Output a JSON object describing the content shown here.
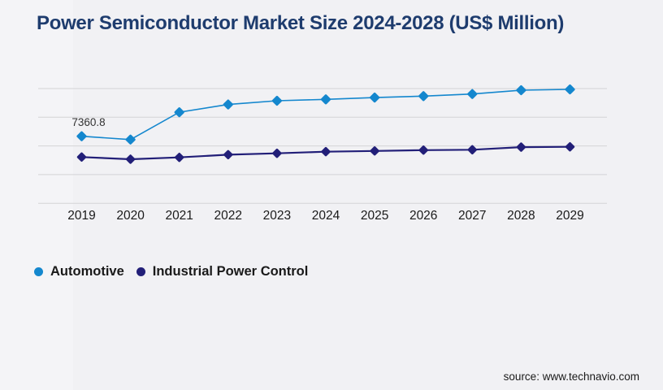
{
  "page": {
    "title": "Power Semiconductor Market Size 2024-2028 (US$ Million)",
    "source": "source: www.technavio.com",
    "background_color": "#f1f1f4",
    "title_color": "#1e3c6e"
  },
  "legend": {
    "items": [
      {
        "label": "Automotive",
        "color": "#1487ce"
      },
      {
        "label": "Industrial Power Control",
        "color": "#221f78"
      }
    ]
  },
  "chart_data": {
    "type": "line",
    "title": "Power Semiconductor Market Size 2024-2028 (US$ Million)",
    "categories": [
      "2019",
      "2020",
      "2021",
      "2022",
      "2023",
      "2024",
      "2025",
      "2026",
      "2027",
      "2028",
      "2029"
    ],
    "series": [
      {
        "name": "Automotive",
        "color": "#1487ce",
        "marker": "diamond",
        "values": [
          7360.8,
          7000,
          10000,
          10850,
          11260,
          11410,
          11610,
          11770,
          12000,
          12420,
          12510
        ]
      },
      {
        "name": "Industrial Power Control",
        "color": "#221f78",
        "marker": "diamond",
        "values": [
          5080,
          4840,
          5040,
          5340,
          5490,
          5670,
          5750,
          5840,
          5880,
          6170,
          6200
        ]
      }
    ],
    "data_labels": [
      {
        "series": "Automotive",
        "category": "2019",
        "text": "7360.8"
      }
    ],
    "xlabel": "",
    "ylabel": "",
    "ylim": [
      0,
      12600
    ],
    "y_axis_labels_visible": false,
    "gridlines": "horizontal",
    "gridline_color": "#d4d4d6",
    "legend_position": "bottom-left"
  }
}
